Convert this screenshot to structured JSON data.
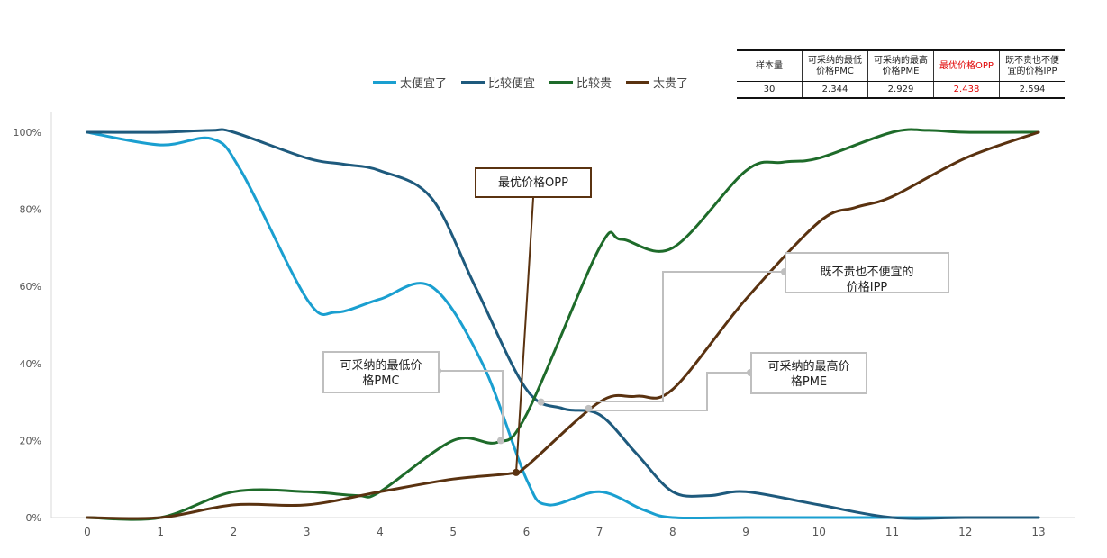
{
  "legend": [
    {
      "name": "太便宜了",
      "color": "#1a9fd0"
    },
    {
      "name": "比较便宜",
      "color": "#1e5a7d"
    },
    {
      "name": "比较贵",
      "color": "#1e6b2a"
    },
    {
      "name": "太贵了",
      "color": "#5a3210"
    }
  ],
  "summary_table": {
    "headers": [
      "样本量",
      "可采纳的最低价格PMC",
      "可采纳的最高价格PME",
      "最优价格OPP",
      "既不贵也不便宜的价格IPP"
    ],
    "header_lines": [
      [
        "样本量"
      ],
      [
        "可采纳的最低",
        "价格PMC"
      ],
      [
        "可采纳的最高",
        "价格PME"
      ],
      [
        "最优价格OPP"
      ],
      [
        "既不贵也不便",
        "宜的价格IPP"
      ]
    ],
    "values": [
      "30",
      "2.344",
      "2.929",
      "2.438",
      "2.594"
    ],
    "highlight_color": "#e00000"
  },
  "callouts": {
    "opp": "最优价格OPP",
    "pmc_line1": "可采纳的最低价",
    "pmc_line2": "格PMC",
    "pme_line1": "可采纳的最高价",
    "pme_line2": "格PME",
    "ipp_line1": "既不贵也不便宜的",
    "ipp_line2": "价格IPP"
  },
  "chart_data": {
    "type": "line",
    "x": [
      0,
      1,
      2,
      3,
      4,
      5,
      6,
      7,
      8,
      9,
      10,
      11,
      12,
      13
    ],
    "x_tick_labels": [
      "0",
      "1",
      "2",
      "3",
      "4",
      "5",
      "6",
      "7",
      "8",
      "9",
      "10",
      "11",
      "12",
      "13"
    ],
    "y_tick_labels": [
      "0%",
      "20%",
      "40%",
      "60%",
      "80%",
      "100%"
    ],
    "ylim": [
      0,
      100
    ],
    "series": [
      {
        "name": "太便宜了",
        "color": "#1a9fd0",
        "points": [
          [
            0,
            100
          ],
          [
            1,
            96.7
          ],
          [
            1.7,
            98.3
          ],
          [
            2.1,
            90
          ],
          [
            3,
            56.7
          ],
          [
            3.4,
            53.3
          ],
          [
            4,
            56.7
          ],
          [
            4.7,
            60
          ],
          [
            5.4,
            40
          ],
          [
            6,
            10
          ],
          [
            6.3,
            3.3
          ],
          [
            7,
            6.7
          ],
          [
            7.6,
            2
          ],
          [
            8,
            0
          ],
          [
            9,
            0
          ],
          [
            10,
            0
          ],
          [
            11,
            0
          ],
          [
            12,
            0
          ],
          [
            13,
            0
          ]
        ]
      },
      {
        "name": "比较便宜",
        "color": "#1e5a7d",
        "points": [
          [
            0,
            100
          ],
          [
            1,
            100
          ],
          [
            1.7,
            100.5
          ],
          [
            2,
            100
          ],
          [
            3,
            93.3
          ],
          [
            3.5,
            91.7
          ],
          [
            4,
            90
          ],
          [
            4.7,
            83
          ],
          [
            5.3,
            60
          ],
          [
            6,
            33.3
          ],
          [
            6.5,
            28.3
          ],
          [
            7,
            26.7
          ],
          [
            7.5,
            16.7
          ],
          [
            8,
            6.7
          ],
          [
            8.5,
            5.7
          ],
          [
            9,
            6.7
          ],
          [
            10,
            3.3
          ],
          [
            11,
            0
          ],
          [
            12,
            0
          ],
          [
            13,
            0
          ]
        ]
      },
      {
        "name": "比较贵",
        "color": "#1e6b2a",
        "points": [
          [
            0,
            0
          ],
          [
            1,
            0
          ],
          [
            2,
            6.7
          ],
          [
            3,
            6.7
          ],
          [
            3.7,
            5.7
          ],
          [
            4,
            6.7
          ],
          [
            5,
            20
          ],
          [
            5.6,
            19.5
          ],
          [
            6,
            26.7
          ],
          [
            7,
            70
          ],
          [
            7.3,
            72.2
          ],
          [
            8,
            70
          ],
          [
            9,
            90
          ],
          [
            9.5,
            92.2
          ],
          [
            10,
            93.3
          ],
          [
            11,
            100
          ],
          [
            11.5,
            100.5
          ],
          [
            12,
            100
          ],
          [
            13,
            100
          ]
        ]
      },
      {
        "name": "太贵了",
        "color": "#5a3210",
        "points": [
          [
            0,
            0
          ],
          [
            1,
            0
          ],
          [
            2,
            3.3
          ],
          [
            3,
            3.3
          ],
          [
            4,
            6.7
          ],
          [
            5,
            10
          ],
          [
            5.8,
            11.5
          ],
          [
            6,
            13.3
          ],
          [
            7,
            30
          ],
          [
            7.5,
            31.5
          ],
          [
            8,
            33.3
          ],
          [
            9,
            56.7
          ],
          [
            10,
            76.7
          ],
          [
            10.5,
            80.5
          ],
          [
            11,
            83.3
          ],
          [
            12,
            93.3
          ],
          [
            13,
            100
          ]
        ]
      }
    ],
    "annotations": [
      {
        "label": "最优价格OPP",
        "x": 5.86,
        "y": 11.7
      },
      {
        "label": "可采纳的最低价格PMC",
        "x": 5.65,
        "y": 20
      },
      {
        "label": "可采纳的最高价格PME",
        "x": 6.85,
        "y": 28.3
      },
      {
        "label": "既不贵也不便宜的价格IPP",
        "x": 6.2,
        "y": 30
      }
    ]
  }
}
